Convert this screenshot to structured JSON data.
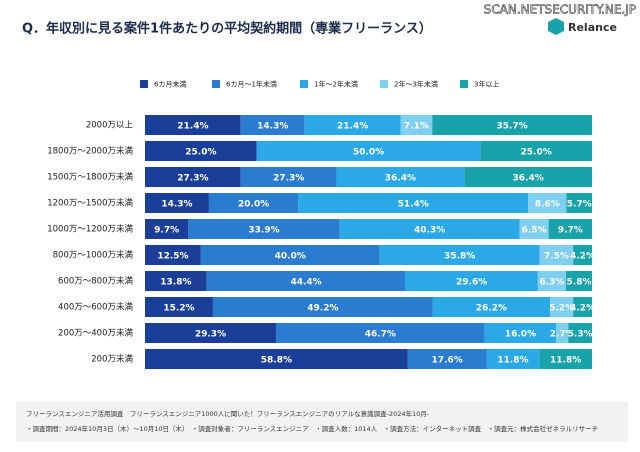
{
  "chart_data": {
    "type": "stacked-bar-horizontal",
    "title": "Q．年収別に見る案件1件あたりの平均契約期間（専業フリーランス）",
    "watermark": "SCAN.NETSECURITY.NE.JP",
    "brand": "Relance",
    "categories": [
      "2000万以上",
      "1800万～2000万未満",
      "1500万～1800万未満",
      "1200万～1500万未満",
      "1000万～1200万未満",
      "800万～1000万未満",
      "600万～800万未満",
      "400万～600万未満",
      "200万～400万未満",
      "200万未満"
    ],
    "series": [
      {
        "name": "6カ月未満",
        "color": "#1b3f98",
        "values": [
          21.4,
          25.0,
          27.3,
          14.3,
          9.7,
          12.5,
          13.8,
          15.2,
          29.3,
          58.8
        ],
        "value_labels": [
          "21.4%",
          "25.0%",
          "27.3%",
          "14.3%",
          "9.7%",
          "12.5%",
          "13.8%",
          "15.2%",
          "29.3%",
          "58.8%"
        ]
      },
      {
        "name": "6カ月〜1年未満",
        "color": "#2a7cd0",
        "values": [
          14.3,
          0,
          27.3,
          20.0,
          33.9,
          40.0,
          44.4,
          49.2,
          46.7,
          17.6
        ],
        "value_labels": [
          "14.3%",
          null,
          "27.3%",
          "20.0%",
          "33.9%",
          "40.0%",
          "44.4%",
          "49.2%",
          "46.7%",
          "17.6%"
        ]
      },
      {
        "name": "1年〜2年未満",
        "color": "#2aa9e6",
        "values": [
          21.4,
          50.0,
          36.4,
          51.4,
          40.3,
          35.8,
          29.6,
          26.2,
          16.0,
          11.8
        ],
        "value_labels": [
          "21.4%",
          "50.0%",
          "36.4%",
          "51.4%",
          "40.3%",
          "35.8%",
          "29.6%",
          "26.2%",
          "16.0%",
          "11.8%"
        ]
      },
      {
        "name": "2年〜3年未満",
        "color": "#7fcff0",
        "values": [
          7.1,
          0,
          0,
          8.6,
          6.5,
          7.5,
          6.3,
          5.2,
          2.7,
          0
        ],
        "value_labels": [
          "7.1%",
          null,
          null,
          "8.6%",
          "6.5%",
          "7.5%",
          "6.3%",
          "5.2%",
          "2.7%",
          null
        ]
      },
      {
        "name": "3年以上",
        "color": "#17a3a9",
        "values": [
          35.7,
          25.0,
          36.4,
          5.7,
          9.7,
          4.2,
          5.8,
          4.2,
          5.3,
          11.8
        ],
        "value_labels": [
          "35.7%",
          "25.0%",
          "36.4%",
          "5.7%",
          "9.7%",
          "4.2%",
          "5.8%",
          "4.2%",
          "5.3%",
          "11.8%"
        ]
      }
    ],
    "notes": [
      "フリーランスエンジニア活用調査　フリーランスエンジニア1000人に聞いた！フリーランスエンジニアのリアルな意識調査-2024年10月-",
      "・調査期間：2024年10月3日（木）〜10月10日（木）　・調査対象者：フリーランスエンジニア　・調査人数：1014人　・調査方法：インターネット調査　・調査元：株式会社ゼネラルリサーチ"
    ]
  }
}
